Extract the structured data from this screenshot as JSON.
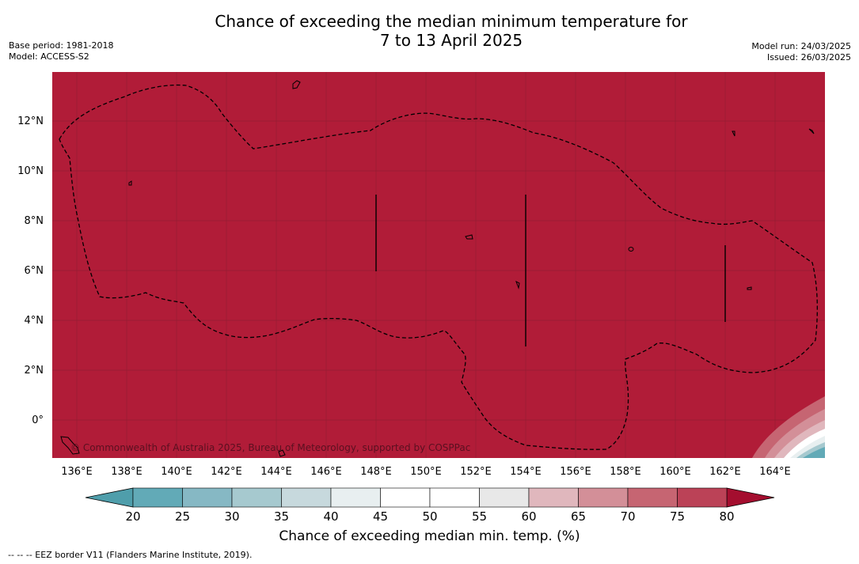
{
  "title": {
    "line1": "Chance of exceeding the median minimum temperature for",
    "line2": "7 to 13 April 2025"
  },
  "meta_left": {
    "base_period": "Base period: 1981-2018",
    "model": "Model: ACCESS-S2"
  },
  "meta_right": {
    "model_run": "Model run: 24/03/2025",
    "issued": "Issued: 26/03/2025"
  },
  "map": {
    "background_color": "#b11c38",
    "lat_labels": [
      "12°N",
      "10°N",
      "8°N",
      "6°N",
      "4°N",
      "2°N",
      "0°"
    ],
    "lon_labels": [
      "136°E",
      "138°E",
      "140°E",
      "142°E",
      "144°E",
      "146°E",
      "148°E",
      "150°E",
      "152°E",
      "154°E",
      "156°E",
      "158°E",
      "160°E",
      "162°E",
      "164°E"
    ],
    "copyright": "© Commonwealth of Australia 2025, Bureau of Meteorology, supported by COSPPac"
  },
  "colorbar": {
    "ticks": [
      "20",
      "25",
      "30",
      "35",
      "40",
      "45",
      "50",
      "55",
      "60",
      "65",
      "70",
      "75",
      "80"
    ],
    "colors": [
      "#62aab7",
      "#86b8c4",
      "#a6c9cf",
      "#c7d9dd",
      "#e8eff0",
      "#ffffff",
      "#ffffff",
      "#e8e8e8",
      "#e0b7bd",
      "#d38f98",
      "#c66572",
      "#bb4257"
    ],
    "low_color": "#4f9eab",
    "high_color": "#a40e2f",
    "label": "Chance of exceeding median min. temp. (%)"
  },
  "legend": {
    "eez_note": "--  --  -- EEZ border V11 (Flanders Marine Institute, 2019)."
  }
}
